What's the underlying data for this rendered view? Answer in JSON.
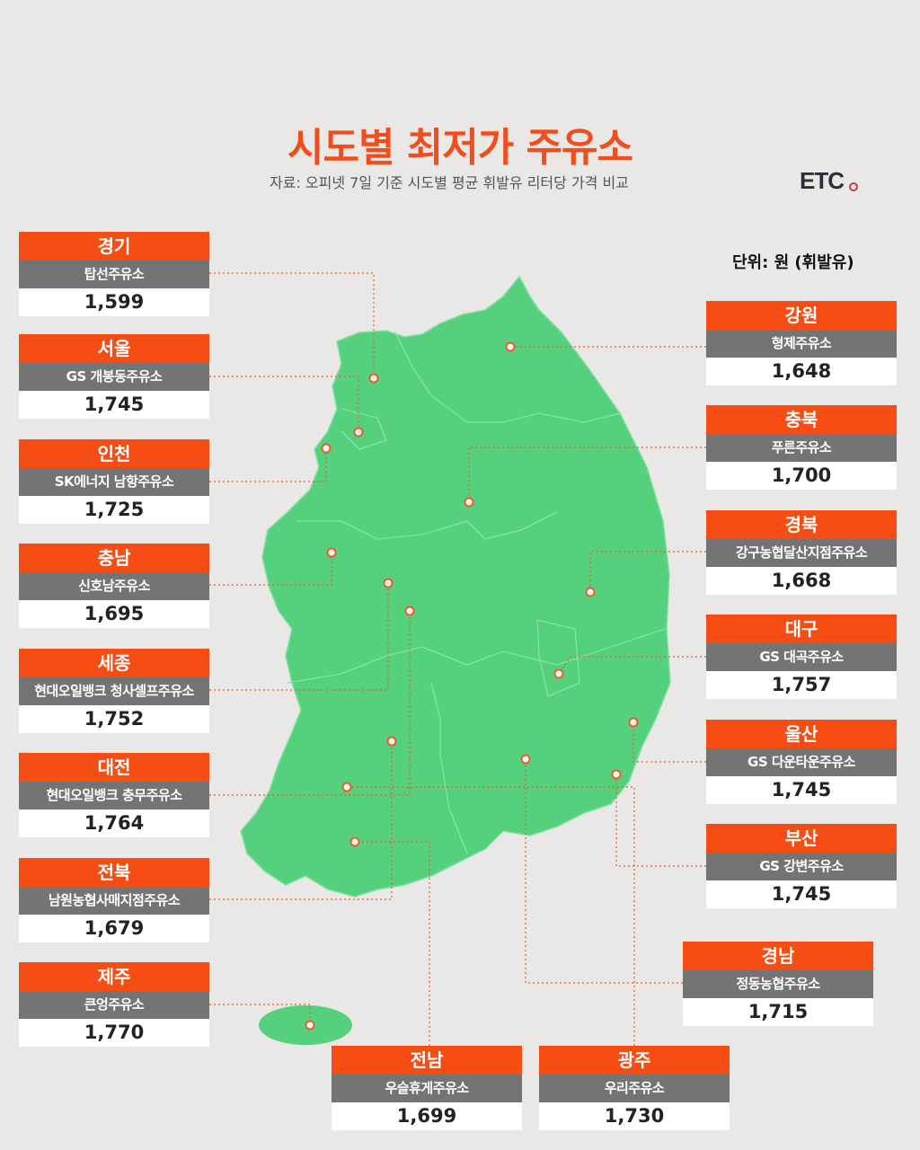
{
  "title": "시도별 최저가 주유소",
  "subtitle": "자료: 오피넷 7일 기준 시도별 평균 휘발유 리터당 가격 비교",
  "logo": "ETC",
  "unit": "단위: 원 (휘발유)",
  "colors": {
    "accent": "#f54d14",
    "map": "#55d17e",
    "station_bg": "#747474",
    "background": "#e9e8e6"
  },
  "stations": [
    {
      "region": "경기",
      "station": "탑선주유소",
      "price": "1,599"
    },
    {
      "region": "서울",
      "station": "GS 개봉동주유소",
      "price": "1,745"
    },
    {
      "region": "인천",
      "station": "SK에너지 남항주유소",
      "price": "1,725"
    },
    {
      "region": "충남",
      "station": "신호남주유소",
      "price": "1,695"
    },
    {
      "region": "세종",
      "station": "현대오일뱅크 청사셀프주유소",
      "price": "1,752"
    },
    {
      "region": "대전",
      "station": "현대오일뱅크 충무주유소",
      "price": "1,764"
    },
    {
      "region": "전북",
      "station": "남원농협사매지점주유소",
      "price": "1,679"
    },
    {
      "region": "제주",
      "station": "큰엉주유소",
      "price": "1,770"
    },
    {
      "region": "강원",
      "station": "형제주유소",
      "price": "1,648"
    },
    {
      "region": "충북",
      "station": "푸른주유소",
      "price": "1,700"
    },
    {
      "region": "경북",
      "station": "강구농협달산지점주유소",
      "price": "1,668"
    },
    {
      "region": "대구",
      "station": "GS 대곡주유소",
      "price": "1,757"
    },
    {
      "region": "울산",
      "station": "GS 다운타운주유소",
      "price": "1,745"
    },
    {
      "region": "부산",
      "station": "GS 강변주유소",
      "price": "1,745"
    },
    {
      "region": "경남",
      "station": "정동농협주유소",
      "price": "1,715"
    },
    {
      "region": "전남",
      "station": "우슬휴게주유소",
      "price": "1,699"
    },
    {
      "region": "광주",
      "station": "우리주유소",
      "price": "1,730"
    }
  ]
}
